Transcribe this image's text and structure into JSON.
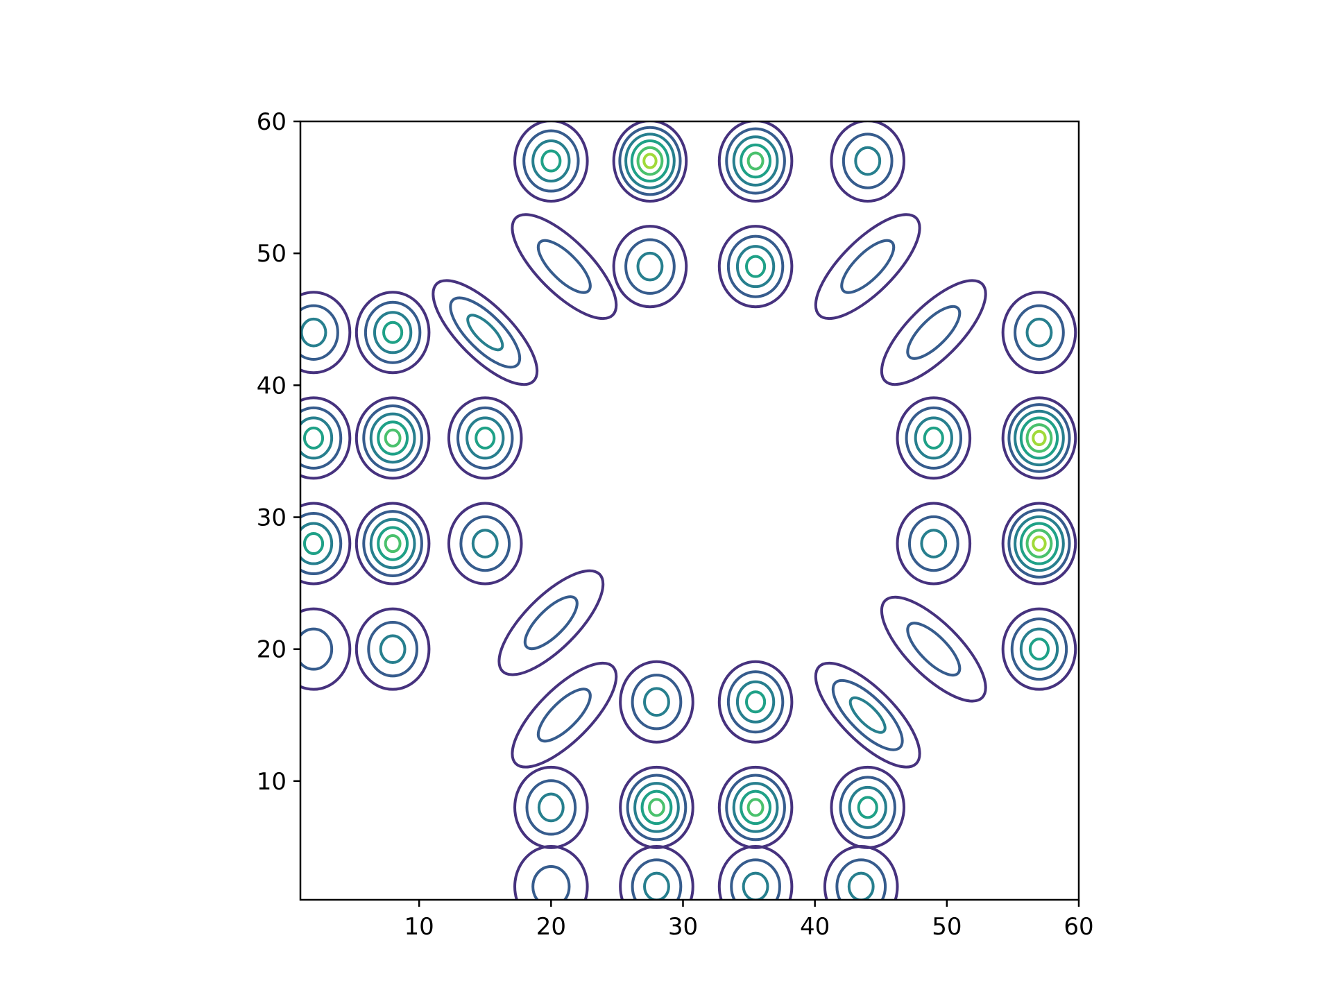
{
  "chart_data": {
    "type": "contour",
    "title": "",
    "xlabel": "",
    "ylabel": "",
    "xlim": [
      1,
      60
    ],
    "ylim": [
      1,
      60
    ],
    "aspect": "equal",
    "grid": false,
    "legend": "none",
    "x_ticks": [
      10,
      20,
      30,
      40,
      50,
      60
    ],
    "y_ticks": [
      10,
      20,
      30,
      40,
      50,
      60
    ],
    "x_tick_labels": [
      "10",
      "20",
      "30",
      "40",
      "50",
      "60"
    ],
    "y_tick_labels": [
      "10",
      "20",
      "30",
      "40",
      "50",
      "60"
    ],
    "colormap": "viridis",
    "contour_colors": [
      "#46327e",
      "#365c8d",
      "#277f8e",
      "#1fa187",
      "#4ac16d",
      "#a0da39"
    ],
    "peaks": [
      {
        "x": 2,
        "y": 44,
        "levels": 3
      },
      {
        "x": 2,
        "y": 36,
        "levels": 4
      },
      {
        "x": 2,
        "y": 28,
        "levels": 4
      },
      {
        "x": 2,
        "y": 20,
        "levels": 2
      },
      {
        "x": 8,
        "y": 44,
        "levels": 4
      },
      {
        "x": 8,
        "y": 36,
        "levels": 5
      },
      {
        "x": 8,
        "y": 28,
        "levels": 5
      },
      {
        "x": 8,
        "y": 20,
        "levels": 3
      },
      {
        "x": 15,
        "y": 36,
        "levels": 4
      },
      {
        "x": 15,
        "y": 28,
        "levels": 3
      },
      {
        "x": 20,
        "y": 57,
        "levels": 4
      },
      {
        "x": 20,
        "y": 8,
        "levels": 3
      },
      {
        "x": 20,
        "y": 2,
        "levels": 2
      },
      {
        "x": 27.5,
        "y": 57,
        "levels": 6
      },
      {
        "x": 27.5,
        "y": 49,
        "levels": 3
      },
      {
        "x": 28,
        "y": 16,
        "levels": 3
      },
      {
        "x": 28,
        "y": 8,
        "levels": 5
      },
      {
        "x": 28,
        "y": 2,
        "levels": 3
      },
      {
        "x": 35.5,
        "y": 57,
        "levels": 5
      },
      {
        "x": 35.5,
        "y": 49,
        "levels": 4
      },
      {
        "x": 35.5,
        "y": 16,
        "levels": 4
      },
      {
        "x": 35.5,
        "y": 8,
        "levels": 5
      },
      {
        "x": 35.5,
        "y": 2,
        "levels": 3
      },
      {
        "x": 44,
        "y": 57,
        "levels": 3
      },
      {
        "x": 44,
        "y": 8,
        "levels": 4
      },
      {
        "x": 43.5,
        "y": 2,
        "levels": 3
      },
      {
        "x": 49,
        "y": 36,
        "levels": 4
      },
      {
        "x": 49,
        "y": 28,
        "levels": 3
      },
      {
        "x": 57,
        "y": 44,
        "levels": 3
      },
      {
        "x": 57,
        "y": 36,
        "levels": 6
      },
      {
        "x": 57,
        "y": 28,
        "levels": 6
      },
      {
        "x": 57,
        "y": 20,
        "levels": 4
      }
    ],
    "diagonal_lobes": [
      {
        "x": 21,
        "y": 49,
        "levels": 2
      },
      {
        "x": 15,
        "y": 44,
        "levels": 3
      },
      {
        "x": 20,
        "y": 22,
        "levels": 2
      },
      {
        "x": 21,
        "y": 15,
        "levels": 2
      },
      {
        "x": 44,
        "y": 49,
        "levels": 2
      },
      {
        "x": 49,
        "y": 44,
        "levels": 2
      },
      {
        "x": 44,
        "y": 15,
        "levels": 3
      },
      {
        "x": 49,
        "y": 20,
        "levels": 2
      }
    ]
  }
}
